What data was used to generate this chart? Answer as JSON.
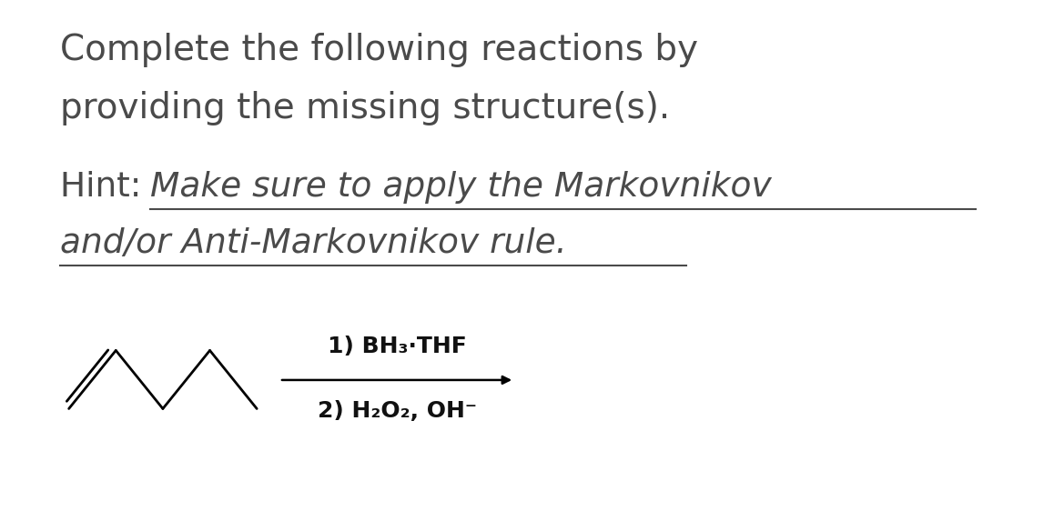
{
  "title_line1": "Complete the following reactions by",
  "title_line2": "providing the missing structure(s).",
  "hint_prefix": "Hint: ",
  "hint_italic": "Make sure to apply the Markovnikov",
  "hint_italic2": "and/or Anti-Markovnikov rule.",
  "reagent_line1": "1) BH₃·THF",
  "reagent_line2": "2) H₂O₂, OH⁻",
  "bg_color": "#ffffff",
  "text_color": "#111111",
  "font_size_title": 28,
  "font_size_hint": 27,
  "font_size_reagent": 18,
  "molecule_color": "#000000",
  "arrow_color": "#000000"
}
